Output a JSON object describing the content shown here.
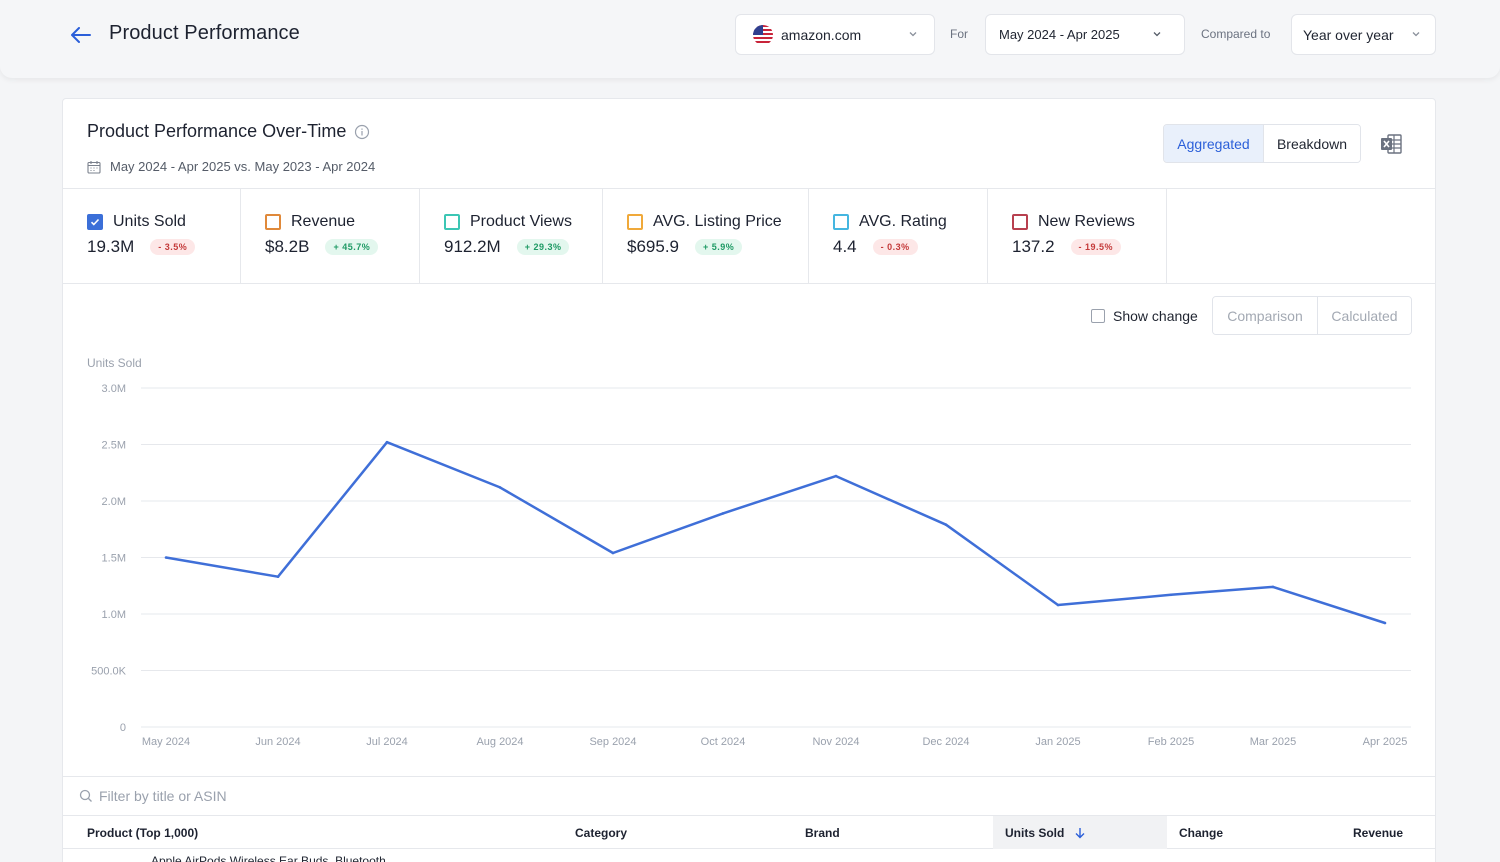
{
  "header": {
    "title": "Product Performance",
    "marketplace": "amazon.com",
    "for_label": "For",
    "date_range": "May 2024 - Apr 2025",
    "compared_label": "Compared to",
    "comparison": "Year over year"
  },
  "card": {
    "title": "Product Performance Over-Time",
    "date_line": "May 2024 - Apr 2025 vs. May 2023 - Apr 2024",
    "view_aggregated": "Aggregated",
    "view_breakdown": "Breakdown"
  },
  "metrics": [
    {
      "label": "Units Sold",
      "value": "19.3M",
      "change": "- 3.5%",
      "checked": true,
      "color": "#3b6fd8",
      "trend": "neg"
    },
    {
      "label": "Revenue",
      "value": "$8.2B",
      "change": "+ 45.7%",
      "checked": false,
      "color": "#e0893a",
      "trend": "pos"
    },
    {
      "label": "Product Views",
      "value": "912.2M",
      "change": "+ 29.3%",
      "checked": false,
      "color": "#3cc6b4",
      "trend": "pos"
    },
    {
      "label": "AVG. Listing Price",
      "value": "$695.9",
      "change": "+ 5.9%",
      "checked": false,
      "color": "#f0a93a",
      "trend": "pos"
    },
    {
      "label": "AVG. Rating",
      "value": "4.4",
      "change": "- 0.3%",
      "checked": false,
      "color": "#45b6e0",
      "trend": "neg"
    },
    {
      "label": "New Reviews",
      "value": "137.2",
      "change": "- 19.5%",
      "checked": false,
      "color": "#b8404f",
      "trend": "neg"
    }
  ],
  "controls": {
    "show_change": "Show change",
    "comparison": "Comparison",
    "calculated": "Calculated"
  },
  "chart_data": {
    "type": "line",
    "ylabel": "Units Sold",
    "ylim": [
      0,
      3000000
    ],
    "ytick_labels": [
      "0",
      "500.0K",
      "1.0M",
      "1.5M",
      "2.0M",
      "2.5M",
      "3.0M"
    ],
    "ytick_values": [
      0,
      500000,
      1000000,
      1500000,
      2000000,
      2500000,
      3000000
    ],
    "categories": [
      "May 2024",
      "Jun 2024",
      "Jul 2024",
      "Aug 2024",
      "Sep 2024",
      "Oct 2024",
      "Nov 2024",
      "Dec 2024",
      "Jan 2025",
      "Feb 2025",
      "Mar 2025",
      "Apr 2025"
    ],
    "series": [
      {
        "name": "Units Sold",
        "color": "#3f6fd8",
        "values": [
          1500000,
          1330000,
          2520000,
          2120000,
          1540000,
          1890000,
          2220000,
          1790000,
          1080000,
          1170000,
          1240000,
          920000
        ]
      }
    ],
    "grid": true
  },
  "table": {
    "filter_placeholder": "Filter by title or ASIN",
    "columns": [
      "Product (Top 1,000)",
      "Category",
      "Brand",
      "Units Sold",
      "Change",
      "Revenue"
    ],
    "first_row_partial": "Apple AirPods Wireless Ear Buds, Bluetooth"
  }
}
